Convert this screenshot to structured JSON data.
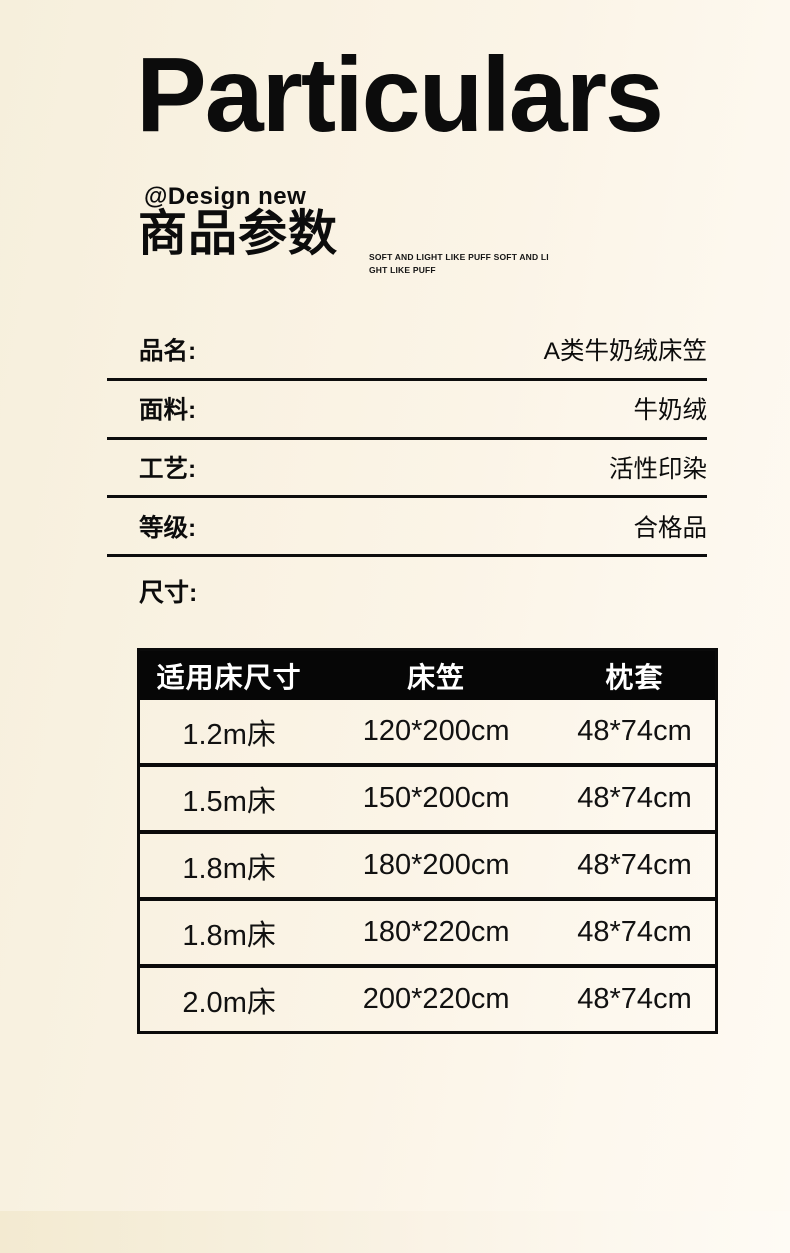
{
  "colors": {
    "background_left": "#f6efdc",
    "background_right": "#fefaf3",
    "ink": "#0c0c0c",
    "table_header_bg": "#060606",
    "table_header_text": "#ffffff"
  },
  "header": {
    "title": "Particulars",
    "subtitle": "@Design new",
    "section_title": "商品参数",
    "tagline_line1": "SOFT AND LIGHT LIKE PUFF SOFT AND LI",
    "tagline_line2": "GHT LIKE PUFF"
  },
  "attributes": [
    {
      "label": "品名:",
      "value": "A类牛奶绒床笠"
    },
    {
      "label": "面料:",
      "value": "牛奶绒"
    },
    {
      "label": "工艺:",
      "value": "活性印染"
    },
    {
      "label": "等级:",
      "value": "合格品"
    }
  ],
  "size_section": {
    "label": "尺寸:"
  },
  "size_table": {
    "headers": [
      "适用床尺寸",
      "床笠",
      "枕套"
    ],
    "rows": [
      [
        "1.2m床",
        "120*200cm",
        "48*74cm"
      ],
      [
        "1.5m床",
        "150*200cm",
        "48*74cm"
      ],
      [
        "1.8m床",
        "180*200cm",
        "48*74cm"
      ],
      [
        "1.8m床",
        "180*220cm",
        "48*74cm"
      ],
      [
        "2.0m床",
        "200*220cm",
        "48*74cm"
      ]
    ]
  }
}
